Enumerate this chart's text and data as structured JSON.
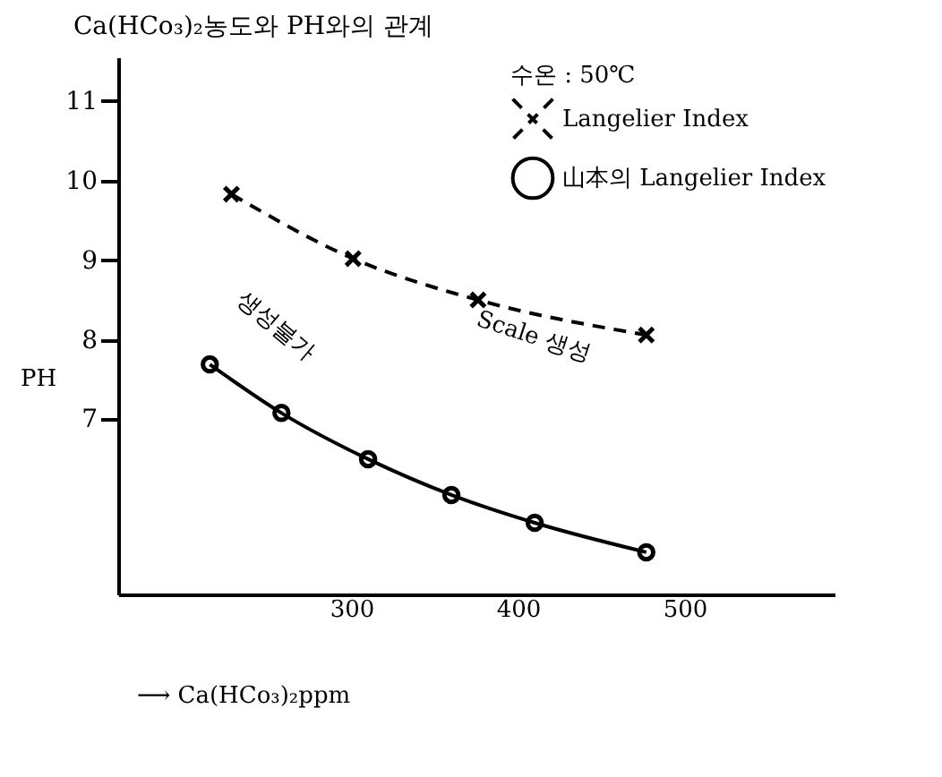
{
  "chart_data": {
    "type": "line",
    "title": "Ca(HCo₃)₂농도와 PH와의 관계",
    "xlabel": "⟶ Ca(HCo₃)₂ppm",
    "ylabel": "PH",
    "legend_title": "수온 : 50℃",
    "xlim": [
      160,
      590
    ],
    "ylim": [
      4.8,
      11.55
    ],
    "xticks": [
      300,
      400,
      500
    ],
    "yticks": [
      7,
      8,
      9,
      10,
      11
    ],
    "grid": false,
    "legend": "top right",
    "series": [
      {
        "name": "Langelier Index",
        "color": "#000000",
        "line_style": "dashed",
        "marker": "cross",
        "x": [
          228,
          301,
          376,
          477
        ],
        "values": [
          9.83,
          9.02,
          8.5,
          8.06
        ]
      },
      {
        "name": "山本의 Langelier Index",
        "color": "#000000",
        "line_style": "solid",
        "marker": "circle",
        "x": [
          215,
          258,
          310,
          360,
          410,
          477
        ],
        "values": [
          7.69,
          7.08,
          6.5,
          6.05,
          5.7,
          5.33
        ]
      }
    ],
    "annotations": [
      "Scale 생성",
      "생성불가"
    ]
  }
}
